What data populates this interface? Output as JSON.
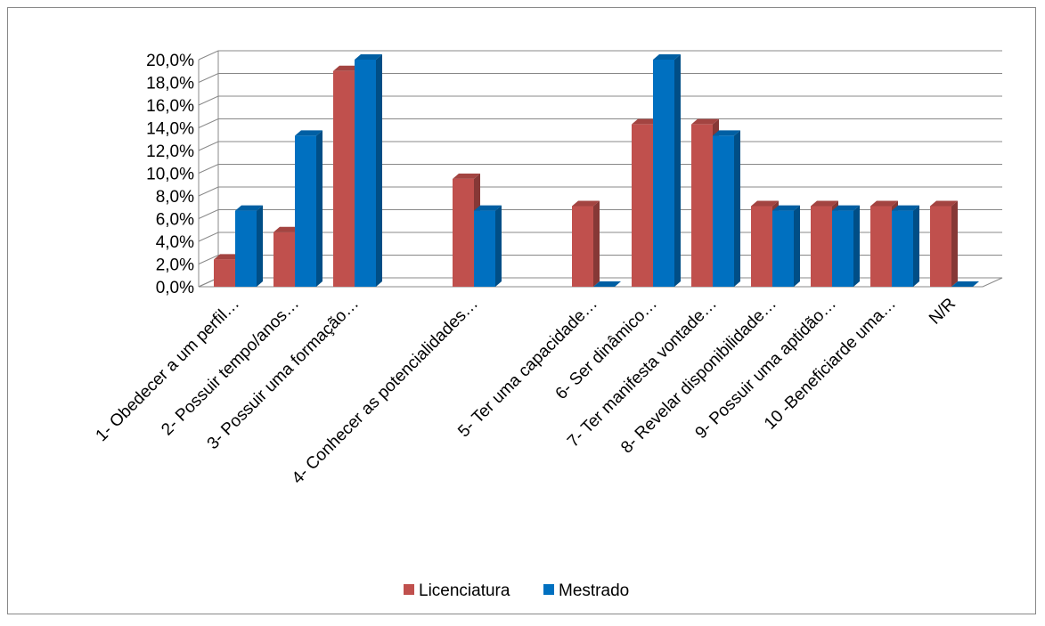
{
  "chart_data": {
    "type": "bar3d",
    "categories": [
      "1- Obedecer a um perfil…",
      "2- Possuir tempo/anos…",
      "3- Possuir uma formação…",
      null,
      "4- Conhecer as potencialidades…",
      null,
      "5- Ter uma capacidade…",
      "6- Ser dinâmico…",
      "7- Ter manifesta vontade…",
      "8- Revelar disponibilidade…",
      "9- Possuir uma aptidão…",
      "10 -Beneficiarde uma…",
      "N/R"
    ],
    "series": [
      {
        "name": "Licenciatura",
        "color": "#c0504d",
        "values": [
          2.4,
          4.8,
          19.0,
          null,
          9.5,
          null,
          7.1,
          14.3,
          14.3,
          7.1,
          7.1,
          7.1,
          7.1
        ]
      },
      {
        "name": "Mestrado",
        "color": "#0070c0",
        "values": [
          6.7,
          13.3,
          20.0,
          null,
          6.7,
          null,
          0,
          20.0,
          13.3,
          6.7,
          6.7,
          6.7,
          0
        ]
      }
    ],
    "ylim": [
      0,
      20
    ],
    "yticks": [
      {
        "value": 0,
        "label": "0,0%"
      },
      {
        "value": 2,
        "label": "2,0%"
      },
      {
        "value": 4,
        "label": "4,0%"
      },
      {
        "value": 6,
        "label": "6,0%"
      },
      {
        "value": 8,
        "label": "8,0%"
      },
      {
        "value": 10,
        "label": "10,0%"
      },
      {
        "value": 12,
        "label": "12,0%"
      },
      {
        "value": 14,
        "label": "14,0%"
      },
      {
        "value": 16,
        "label": "16,0%"
      },
      {
        "value": 18,
        "label": "18,0%"
      },
      {
        "value": 20,
        "label": "20,0%"
      }
    ],
    "grid": true,
    "legend": "bottom"
  }
}
